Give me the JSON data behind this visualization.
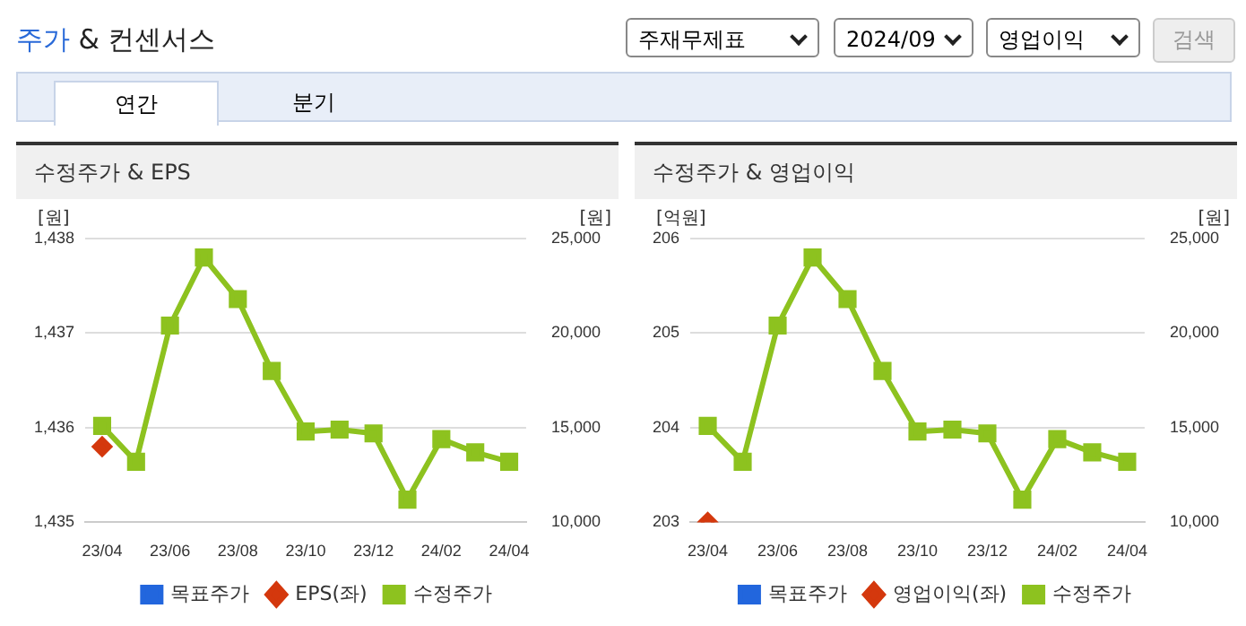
{
  "chart_data": [
    {
      "type": "line",
      "title": "수정주가 & EPS",
      "ylabel": "[원]",
      "y2label": "[원]",
      "annotations": [
        "주가 & 컨센서스",
        "주재무제표",
        "2024/09",
        "영업이익",
        "검색",
        "연간",
        "분기"
      ],
      "categories": [
        "23/04",
        null,
        "23/06",
        null,
        "23/08",
        null,
        "23/10",
        null,
        "23/12",
        null,
        "24/02",
        null,
        "24/04"
      ],
      "series": [
        {
          "name": "목표주가",
          "color": "#2266dd",
          "marker": "square",
          "values": [
            null,
            null,
            null,
            null,
            null,
            null,
            null,
            null,
            null,
            null,
            null,
            null,
            null
          ]
        },
        {
          "name": "EPS(좌)",
          "color": "#d4380d",
          "marker": "diamond",
          "values": [
            1435.8,
            null,
            null,
            null,
            null,
            null,
            null,
            null,
            null,
            null,
            null,
            null,
            null
          ]
        },
        {
          "name": "수정주가",
          "color": "#8dc21f",
          "marker": "square",
          "axis": "y2",
          "values": [
            15100,
            13200,
            20400,
            24000,
            21800,
            18000,
            14800,
            14900,
            14700,
            11200,
            14400,
            13700,
            13200
          ]
        }
      ],
      "ylim": [
        1435,
        1438
      ],
      "yticks": [
        {
          "value": 1435,
          "label": "1,435"
        },
        {
          "value": 1436,
          "label": "1,436"
        },
        {
          "value": 1437,
          "label": "1,437"
        },
        {
          "value": 1438,
          "label": "1,438"
        }
      ],
      "y2lim": [
        10000,
        25000
      ],
      "y2ticks": [
        {
          "value": 10000,
          "label": "10,000"
        },
        {
          "value": 15000,
          "label": "15,000"
        },
        {
          "value": 20000,
          "label": "20,000"
        },
        {
          "value": 25000,
          "label": "25,000"
        }
      ],
      "grid": "y",
      "legend": "bottom"
    },
    {
      "type": "line",
      "title": "수정주가 & 영업이익",
      "ylabel": "[억원]",
      "y2label": "[원]",
      "categories": [
        "23/04",
        null,
        "23/06",
        null,
        "23/08",
        null,
        "23/10",
        null,
        "23/12",
        null,
        "24/02",
        null,
        "24/04"
      ],
      "series": [
        {
          "name": "목표주가",
          "color": "#2266dd",
          "marker": "square",
          "values": [
            null,
            null,
            null,
            null,
            null,
            null,
            null,
            null,
            null,
            null,
            null,
            null,
            null
          ]
        },
        {
          "name": "영업이익(좌)",
          "color": "#d4380d",
          "marker": "diamond",
          "values": [
            203.0,
            null,
            null,
            null,
            null,
            null,
            null,
            null,
            null,
            null,
            null,
            null,
            null
          ]
        },
        {
          "name": "수정주가",
          "color": "#8dc21f",
          "marker": "square",
          "axis": "y2",
          "values": [
            15100,
            13200,
            20400,
            24000,
            21800,
            18000,
            14800,
            14900,
            14700,
            11200,
            14400,
            13700,
            13200
          ]
        }
      ],
      "ylim": [
        203,
        206
      ],
      "yticks": [
        203,
        204,
        205,
        206
      ],
      "y2lim": [
        10000,
        25000
      ],
      "y2ticks": [
        {
          "value": 10000,
          "label": "10,000"
        },
        {
          "value": 15000,
          "label": "15,000"
        },
        {
          "value": 20000,
          "label": "20,000"
        },
        {
          "value": 25000,
          "label": "25,000"
        }
      ],
      "grid": "y",
      "legend": "bottom"
    }
  ]
}
